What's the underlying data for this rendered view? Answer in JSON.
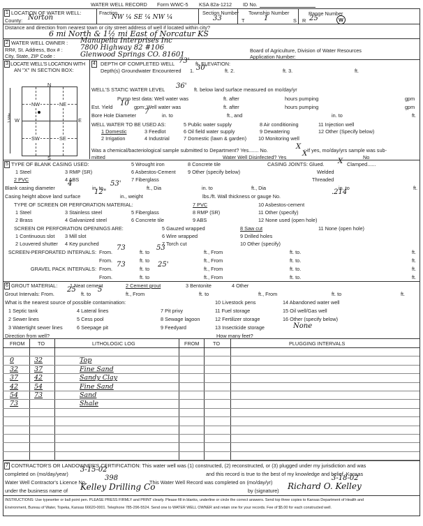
{
  "header": {
    "title": "WATER WELL RECORD",
    "form": "Form WWC-5",
    "ksa": "KSA 82a-1212",
    "id_label": "ID No."
  },
  "s1": {
    "num": "1",
    "label": "LOCATION OF WATER WELL:",
    "county_label": "County:",
    "county": "Norton",
    "fraction_label": "Fraction",
    "fraction": "NW ¼ SE ¼ NW ¼",
    "section_label": "Section Number",
    "section": "33",
    "township_label": "Township Number",
    "township_t": "T",
    "township": "1",
    "township_s": "S",
    "range_label": "Range Number",
    "range_r": "R",
    "range": "25",
    "range_dir": "W",
    "distance_label": "Distance and direction from nearest town or city street address of well if located within city?",
    "distance": "6 mi North & 1½ mi East of Norcatur KS"
  },
  "s2": {
    "num": "2",
    "owner_label": "WATER WELL OWNER :",
    "owner": "Manupella Interprises Inc",
    "addr_label": "RR#, St. Address, Box # :",
    "addr": "7800 Highway 82 #106",
    "city_label": "City, State, ZIP Code :",
    "city": "Glenwood Springs CO. 81601",
    "board": "Board of Agriculture, Division of Water Resources",
    "app_label": "Application Number:"
  },
  "s3": {
    "num": "3",
    "label1": "LOCATE WELL'S LOCATION WITH",
    "label2": "AN \"X\" IN SECTION BOX:",
    "n": "N",
    "s": "S",
    "e": "E",
    "w": "W",
    "nw": "NW",
    "ne": "NE",
    "sw": "SW",
    "se": "SE",
    "mile": "1 Mile"
  },
  "s4": {
    "num": "4",
    "depth_label": "DEPTH OF COMPLETED WELL",
    "depth": "73'",
    "elev_label": "ft. ELEVATION:",
    "gw_label": "Depth(s) Groundwater Encountered",
    "gw1_label": "1.",
    "gw1": "30'",
    "gw2_label": "ft. 2.",
    "gw3_label": "ft. 3.",
    "ft": "ft.",
    "static_label": "WELL'S STATIC WATER LEVEL",
    "static": "36'",
    "static_suffix": "ft. below land surface measured on mo/day/yr",
    "pump_label": "Pump test data:  Well water was",
    "after": "ft. after",
    "hours": "hours pumping",
    "gpm": "gpm",
    "yield_label": "Est. Yield",
    "yield": "10",
    "yield_gpm": "gpm:  Well water was",
    "bore_label": "Bore Hole Diameter",
    "bore": "7",
    "bore_in": "in.  to",
    "bore_and": "ft., and",
    "bore_in2": "in.  to",
    "use_label": "WELL WATER TO BE USED AS:",
    "uses": [
      "1 Domestic",
      "2 Irrigation",
      "3 Feedlot",
      "4 Industrial",
      "5 Public water supply",
      "6 Oil field water supply",
      "7 Domestic (lawn & garden)",
      "8 Air conditioning",
      "9 Dewatering",
      "10 Monitoring well",
      "11 Injection well",
      "12 Other (Specify below)"
    ],
    "chem_label": "Was a chemical/bacteriological sample submitted to Department? Yes.......  No.",
    "chem_no": "X",
    "chem_suffix": "; If yes, mo/day/yrs sample was sub-",
    "mitted": "mitted",
    "disinfected_label": "Water Well Disinfected?  Yes",
    "disinfected_yes": "X",
    "disinfected_no": "No"
  },
  "s5": {
    "num": "5",
    "label": "TYPE OF BLANK CASING USED:",
    "types": [
      "1 Steel",
      "2 PVC",
      "3 RMP (SR)",
      "4 ABS",
      "5 Wrought iron",
      "6 Asbestos-Cement",
      "7 Fiberglass",
      "8 Concrete tile",
      "9 Other (specify below)"
    ],
    "joints_label": "CASING JOINTS: Glued.",
    "glued": "X",
    "clamped": "Clamped......",
    "welded": "Welded",
    "threaded": "Threaded",
    "blank_label": "Blank casing diameter",
    "blank_dia": "4",
    "in_to": "in. to",
    "blank_to": "53'",
    "ft_dia": "ft., Dia",
    "ft": "ft.",
    "height_label": "Casing height above land surface",
    "height": "12\"",
    "weight": "in., weight",
    "lbs": "lbs./ft. Wall thickness or gauge No.",
    "gauge": ".214",
    "screen_label": "TYPE OF SCREEN OR PERFORATION MATERIAL:",
    "screens": [
      "1 Steel",
      "2 Brass",
      "3 Stainless steel",
      "4 Galvanized steel",
      "5 Fiberglass",
      "6 Concrete tile",
      "7 PVC",
      "8 RMP (SR)",
      "9 ABS",
      "10 Asbestos-cement",
      "11 Other (specify)",
      "12 None used (open hole)"
    ],
    "openings_label": "SCREEN OR PERFORATION OPENINGS ARE:",
    "openings": [
      "1 Continuous slot",
      "2 Louvered shutter",
      "3 Mill slot",
      "4 Key punched",
      "5 Gauzed wrapped",
      "6 Wire wrapped",
      "7 Torch cut",
      "8 Saw cut",
      "9 Drilled holes",
      "10 Other (specify)",
      "11 None (open hole)"
    ],
    "perf_label": "SCREEN-PERFORATED INTERVALS:",
    "gravel_label": "GRAVEL PACK INTERVALS:",
    "from": "From.",
    "ft_to": "ft. to",
    "ft_from": "ft., From",
    "ft_to2": "ft. to.",
    "perf_from": "73",
    "perf_to": "53",
    "gravel_from": "73",
    "gravel_to": "25'"
  },
  "s6": {
    "num": "6",
    "label": "GROUT MATERIAL:",
    "materials": [
      "1 Neat cement",
      "2 Cement grout",
      "3 Bentonite",
      "4 Other"
    ],
    "intervals_label": "Grout Intervals:  From.",
    "grout_from": "25",
    "ft_to": "ft. to",
    "grout_to": "5",
    "ft_from": "ft., From",
    "ft_to2": "ft. to",
    "ft": "ft.",
    "contam_label": "What is the nearest source of possible contamination:",
    "sources": [
      "1 Septic tank",
      "2 Sewer lines",
      "3 Watertight sewer lines",
      "4 Lateral lines",
      "5 Cess pool",
      "6 Seepage pit",
      "7 Pit privy",
      "8 Sewage lagoon",
      "9 Feedyard",
      "10 Livestock pens",
      "11 Fuel storage",
      "12 Fertilizer storage",
      "13 Insecticide storage",
      "14 Abandoned water well",
      "15 Oil well/Gas well",
      "16 Other (specify below)"
    ],
    "other_value": "None",
    "direction_label": "Direction from well?",
    "howmany_label": "How many feet?"
  },
  "log": {
    "headers": [
      "FROM",
      "TO",
      "LITHOLOGIC LOG",
      "FROM",
      "TO",
      "PLUGGING INTERVALS"
    ],
    "rows": [
      {
        "from": "0",
        "to": "32",
        "desc": "Top"
      },
      {
        "from": "32",
        "to": "37",
        "desc": "Fine Sand"
      },
      {
        "from": "37",
        "to": "42",
        "desc": "Sandy Clay"
      },
      {
        "from": "42",
        "to": "54",
        "desc": "Fine Sand"
      },
      {
        "from": "54",
        "to": "73",
        "desc": "Sand"
      },
      {
        "from": "73",
        "to": "",
        "desc": "Shale"
      }
    ]
  },
  "s7": {
    "num": "7",
    "line1": "CONTRACTOR'S OR LANDOWNER'S CERTIFICATION: This water well was (1) constructed, (2) reconstructed, or (3) plugged under my jurisdiction and was",
    "completed_label": "completed on (mo/day/year)",
    "completed": "3-15-02",
    "line2b": "and this record is true to the best of my knowledge and belief. Kansas",
    "licence_label": "Water Well Contractor's Licence No.",
    "licence": "398",
    "record_label": "This Water Well Record was completed on (mo/day/yr)",
    "record_date": "3-18-02",
    "business_label": "under the business name of",
    "business": "Kelley Drilling Co",
    "by_label": "by (signature)",
    "signature": "Richard O. Kelley",
    "instr1": "INSTRUCTIONS: Use typewriter or ball point pen. PLEASE PRESS FIRMLY and PRINT clearly. Please fill in blanks, underline or circle the correct answers. Send top three copies to Kansas Department of Health and",
    "instr2": "Environment, Bureau of Water, Topeka, Kansas 66620-0001. Telephone 785-296-5524. Send one to WATER WELL OWNER and retain one for your records. Fee of $5.00 for each constructed well."
  }
}
